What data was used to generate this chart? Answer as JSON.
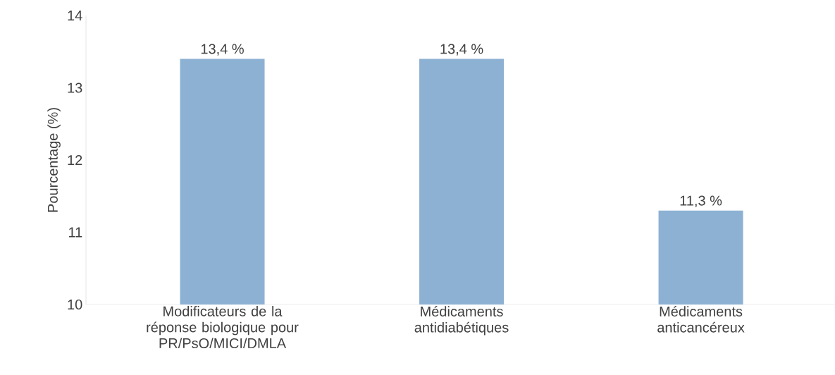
{
  "chart_data": {
    "type": "bar",
    "ylabel": "Pourcentage  (%)",
    "categories": [
      "Modificateurs de la réponse biologique pour PR/PsO/MICI/DMLA",
      "Médicaments antidiabétiques",
      "Médicaments anticancéreux"
    ],
    "values": [
      13.4,
      13.4,
      11.3
    ],
    "value_labels": [
      "13,4 %",
      "13,4 %",
      "11,3 %"
    ],
    "color": "#8db1d3",
    "ylim": [
      10,
      14
    ],
    "yticks": [
      10,
      11,
      12,
      13,
      14
    ],
    "grid": false
  }
}
